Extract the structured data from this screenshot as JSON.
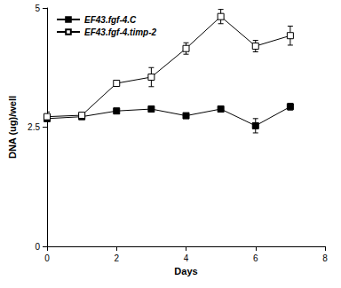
{
  "chart_data": {
    "type": "line",
    "x_label": "Days",
    "y_label": "DNA (ug)/well",
    "xlim": [
      0,
      8
    ],
    "xticks": [
      0,
      2,
      4,
      6,
      8
    ],
    "ylim": [
      0,
      5
    ],
    "yticks": [
      0,
      2.5,
      5
    ],
    "grid": false,
    "legend": "top-left",
    "series": [
      {
        "name": "EF43.fgf-4.C",
        "color": "#000000",
        "marker": "filled_square",
        "x": [
          0,
          1,
          2,
          3,
          4,
          5,
          6,
          7
        ],
        "values": [
          2.68,
          2.72,
          2.84,
          2.88,
          2.74,
          2.88,
          2.53,
          2.93
        ],
        "errors": [
          0.05,
          0.03,
          0.04,
          0.03,
          0.03,
          0.03,
          0.15,
          0.07
        ]
      },
      {
        "name": "EF43.fgf-4.timp-2",
        "color": "#000000",
        "marker": "open_square",
        "x": [
          0,
          1,
          2,
          3,
          4,
          5,
          6,
          7
        ],
        "values": [
          2.72,
          2.75,
          3.42,
          3.55,
          4.15,
          4.82,
          4.2,
          4.42
        ],
        "errors": [
          0.1,
          0.03,
          0.05,
          0.2,
          0.12,
          0.15,
          0.12,
          0.2
        ]
      }
    ]
  }
}
